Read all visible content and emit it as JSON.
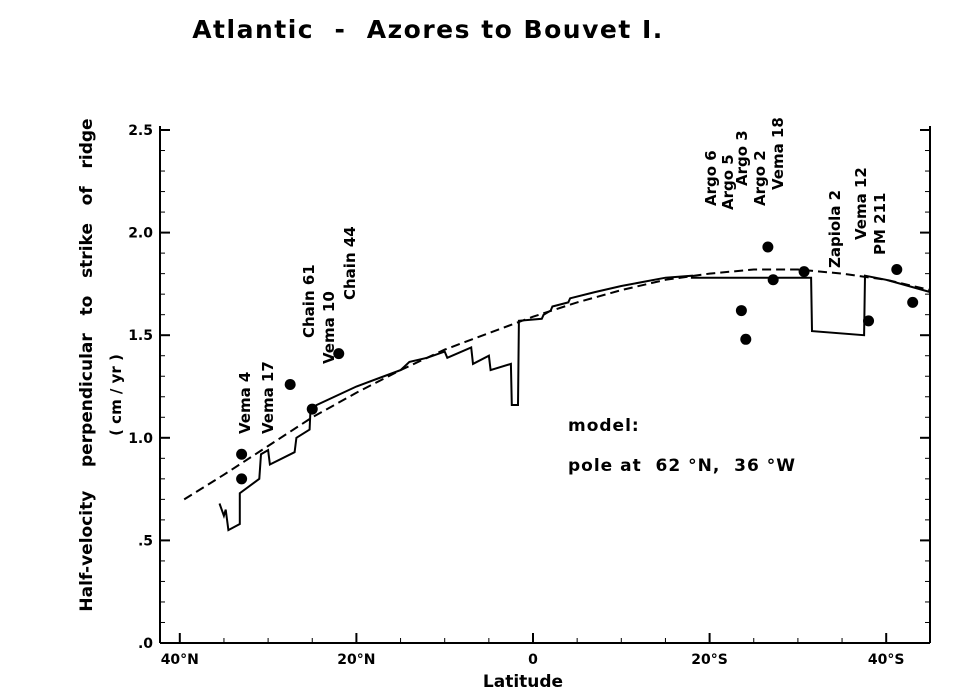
{
  "chart_data": {
    "type": "line",
    "title": "Atlantic  -  Azores to Bouvet I.",
    "xlabel": "Latitude",
    "ylabel": "Half-velocity    perpendicular   to   strike   of   ridge",
    "ylabel_units": "( cm / yr )",
    "xlim": [
      40,
      -45
    ],
    "ylim": [
      0,
      2.5
    ],
    "x_ticks": [
      {
        "value": 40,
        "label": "40°N"
      },
      {
        "value": 20,
        "label": "20°N"
      },
      {
        "value": 0,
        "label": "0"
      },
      {
        "value": -20,
        "label": "20°S"
      },
      {
        "value": -40,
        "label": "40°S"
      }
    ],
    "y_ticks": [
      {
        "value": 0,
        "label": ".0"
      },
      {
        "value": 0.5,
        "label": ".5"
      },
      {
        "value": 1.0,
        "label": "1.0"
      },
      {
        "value": 1.5,
        "label": "1.5"
      },
      {
        "value": 2.0,
        "label": "2.0"
      },
      {
        "value": 2.5,
        "label": "2.5"
      }
    ],
    "model_text": [
      "model:",
      "pole at  62 °N,  36 °W"
    ],
    "series": [
      {
        "style": "dashed",
        "points": [
          [
            39.5,
            0.7
          ],
          [
            35,
            0.82
          ],
          [
            30,
            0.96
          ],
          [
            25,
            1.1
          ],
          [
            20,
            1.22
          ],
          [
            15,
            1.33
          ],
          [
            10,
            1.43
          ],
          [
            5,
            1.51
          ],
          [
            0,
            1.59
          ],
          [
            -5,
            1.66
          ],
          [
            -10,
            1.72
          ],
          [
            -15,
            1.77
          ],
          [
            -20,
            1.8
          ],
          [
            -25,
            1.82
          ],
          [
            -30,
            1.82
          ],
          [
            -35,
            1.8
          ],
          [
            -40,
            1.77
          ],
          [
            -45,
            1.72
          ]
        ]
      },
      {
        "style": "solid",
        "points": [
          [
            35.5,
            0.68
          ],
          [
            35,
            0.62
          ],
          [
            34.8,
            0.65
          ],
          [
            34.5,
            0.55
          ],
          [
            33.2,
            0.58
          ],
          [
            33.2,
            0.73
          ],
          [
            31,
            0.8
          ],
          [
            30.8,
            0.92
          ],
          [
            30,
            0.94
          ],
          [
            29.8,
            0.87
          ],
          [
            27,
            0.93
          ],
          [
            26.8,
            1.0
          ],
          [
            25.3,
            1.04
          ],
          [
            25.2,
            1.14
          ],
          [
            24.5,
            1.16
          ],
          [
            20,
            1.25
          ],
          [
            15,
            1.33
          ],
          [
            14,
            1.37
          ],
          [
            12,
            1.39
          ],
          [
            10,
            1.42
          ],
          [
            9.7,
            1.39
          ],
          [
            7,
            1.44
          ],
          [
            6.8,
            1.36
          ],
          [
            5,
            1.4
          ],
          [
            4.8,
            1.33
          ],
          [
            2.5,
            1.36
          ],
          [
            2.4,
            1.16
          ],
          [
            1.7,
            1.16
          ],
          [
            1.6,
            1.57
          ],
          [
            -1,
            1.58
          ],
          [
            -1.2,
            1.6
          ],
          [
            -2,
            1.62
          ],
          [
            -2.2,
            1.64
          ],
          [
            -4,
            1.66
          ],
          [
            -4.2,
            1.68
          ],
          [
            -7,
            1.71
          ],
          [
            -10,
            1.74
          ],
          [
            -15,
            1.78
          ],
          [
            -18,
            1.79
          ],
          [
            -18,
            1.78
          ],
          [
            -25,
            1.78
          ],
          [
            -31.5,
            1.78
          ],
          [
            -31.6,
            1.52
          ],
          [
            -37.5,
            1.5
          ],
          [
            -37.6,
            1.79
          ],
          [
            -40,
            1.77
          ],
          [
            -45,
            1.71
          ]
        ]
      }
    ],
    "scatter": [
      {
        "x": 33,
        "y": 0.92,
        "label": "Vema 4"
      },
      {
        "x": 33,
        "y": 0.8,
        "label": "Vema 17"
      },
      {
        "x": 27.5,
        "y": 1.26,
        "label": "Chain 61"
      },
      {
        "x": 25,
        "y": 1.14,
        "label": "Vema 10"
      },
      {
        "x": 22,
        "y": 1.41,
        "label": "Chain 44"
      },
      {
        "x": -23.6,
        "y": 1.62,
        "label": "Argo 6"
      },
      {
        "x": -24.1,
        "y": 1.48,
        "label": "Argo 5"
      },
      {
        "x": -26.6,
        "y": 1.93,
        "label": "Argo 3"
      },
      {
        "x": -27.2,
        "y": 1.77,
        "label": "Argo 2"
      },
      {
        "x": -30.7,
        "y": 1.81,
        "label": "Vema 18"
      },
      {
        "x": -38,
        "y": 1.57,
        "label": "Zapiola 2"
      },
      {
        "x": -41.2,
        "y": 1.82,
        "label": "Vema 12"
      },
      {
        "x": -43,
        "y": 1.66,
        "label": "PM 211"
      }
    ]
  }
}
